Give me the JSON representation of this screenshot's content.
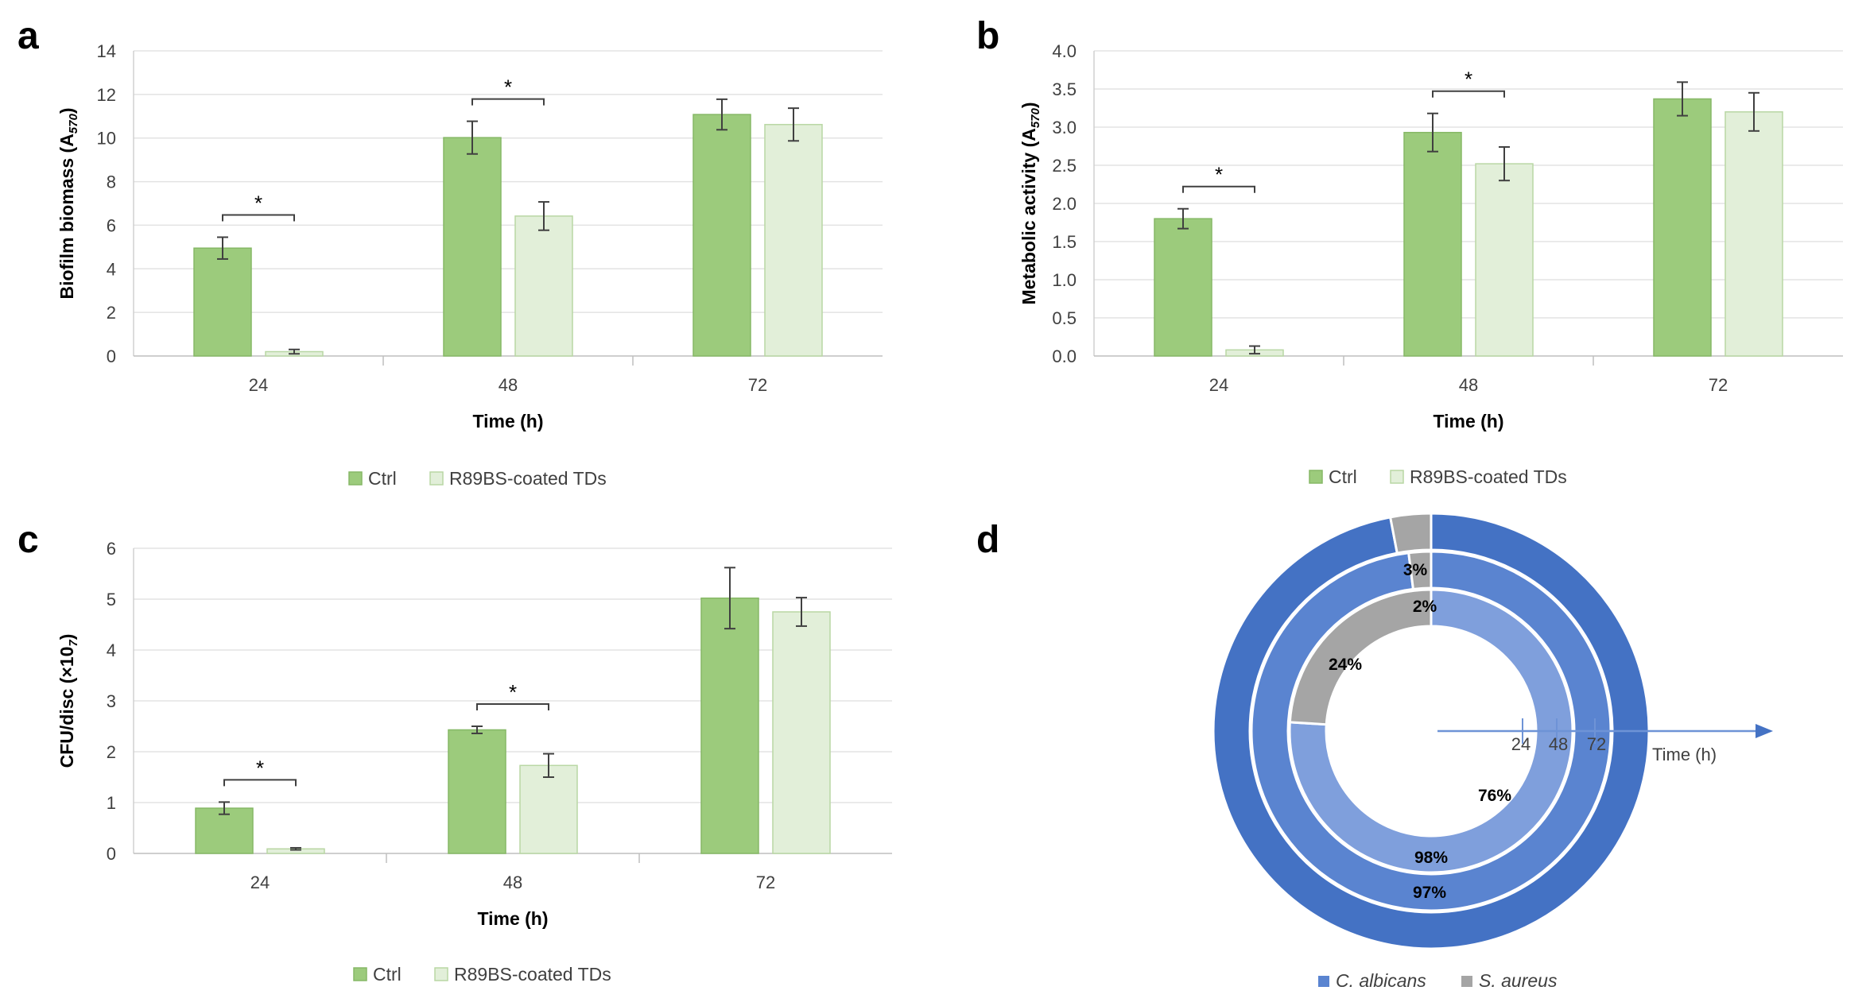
{
  "chart_data": [
    {
      "panel": "a",
      "type": "bar",
      "xlabel": "Time (h)",
      "ylabel": "Biofilm biomass (A",
      "ylabel_sub": "570",
      "ylabel_end": ")",
      "ylim": [
        0,
        14
      ],
      "yticks": [
        "0",
        "2",
        "4",
        "6",
        "8",
        "10",
        "12",
        "14"
      ],
      "categories": [
        "24",
        "48",
        "72"
      ],
      "grid": true,
      "legend_position": "bottom",
      "series": [
        {
          "name": "Ctrl",
          "color": "#9ccb7c",
          "edge": "#86b866",
          "values": [
            4.95,
            10.02,
            11.08
          ],
          "errors": [
            0.5,
            0.75,
            0.7
          ]
        },
        {
          "name": "R89BS-coated TDs",
          "color": "#e2efd9",
          "edge": "#b9d7a4",
          "values": [
            0.2,
            6.42,
            10.62
          ],
          "errors": [
            0.1,
            0.65,
            0.75
          ]
        }
      ],
      "significance": [
        {
          "category": 0,
          "label": "*"
        },
        {
          "category": 1,
          "label": "*"
        }
      ]
    },
    {
      "panel": "b",
      "type": "bar",
      "xlabel": "Time (h)",
      "ylabel": "Metabolic activity (A",
      "ylabel_sub": "570",
      "ylabel_end": ")",
      "ylim": [
        0,
        4
      ],
      "yticks": [
        "0.0",
        "0.5",
        "1.0",
        "1.5",
        "2.0",
        "2.5",
        "3.0",
        "3.5",
        "4.0"
      ],
      "categories": [
        "24",
        "48",
        "72"
      ],
      "grid": true,
      "legend_position": "bottom",
      "series": [
        {
          "name": "Ctrl",
          "color": "#9ccb7c",
          "edge": "#86b866",
          "values": [
            1.8,
            2.93,
            3.37
          ],
          "errors": [
            0.13,
            0.25,
            0.22
          ]
        },
        {
          "name": "R89BS-coated TDs",
          "color": "#e2efd9",
          "edge": "#b9d7a4",
          "values": [
            0.08,
            2.52,
            3.2
          ],
          "errors": [
            0.05,
            0.22,
            0.25
          ]
        }
      ],
      "significance": [
        {
          "category": 0,
          "label": "*"
        },
        {
          "category": 1,
          "label": "*"
        }
      ]
    },
    {
      "panel": "c",
      "type": "bar",
      "xlabel": "Time (h)",
      "ylabel": "CFU/disc (×10",
      "ylabel_sub": "7",
      "ylabel_end": ")",
      "ylim": [
        0,
        6
      ],
      "yticks": [
        "0",
        "1",
        "2",
        "3",
        "4",
        "5",
        "6"
      ],
      "categories": [
        "24",
        "48",
        "72"
      ],
      "grid": true,
      "legend_position": "bottom",
      "series": [
        {
          "name": "Ctrl",
          "color": "#9ccb7c",
          "edge": "#86b866",
          "values": [
            0.89,
            2.43,
            5.02
          ],
          "errors": [
            0.12,
            0.07,
            0.6
          ]
        },
        {
          "name": "R89BS-coated TDs",
          "color": "#e2efd9",
          "edge": "#b9d7a4",
          "values": [
            0.09,
            1.73,
            4.75
          ],
          "errors": [
            0.02,
            0.23,
            0.28
          ]
        }
      ],
      "significance": [
        {
          "category": 0,
          "label": "*"
        },
        {
          "category": 1,
          "label": "*"
        }
      ]
    },
    {
      "panel": "d",
      "type": "pie",
      "subtype": "multi-ring donut",
      "axis_label": "Time (h)",
      "rings": [
        {
          "time": "24",
          "color": "#7f9fdc",
          "slices": [
            {
              "name": "C. albicans",
              "value": 76,
              "label": "76%"
            },
            {
              "name": "S. aureus",
              "value": 24,
              "label": "24%"
            }
          ]
        },
        {
          "time": "48",
          "color": "#5a84d0",
          "slices": [
            {
              "name": "C. albicans",
              "value": 98,
              "label": "98%"
            },
            {
              "name": "S. aureus",
              "value": 2,
              "label": "2%"
            }
          ]
        },
        {
          "time": "72",
          "color": "#4472c4",
          "slices": [
            {
              "name": "C. albicans",
              "value": 97,
              "label": "97%"
            },
            {
              "name": "S. aureus",
              "value": 3,
              "label": "3%"
            }
          ]
        }
      ],
      "legend_position": "bottom",
      "legend": [
        {
          "name": "C. albicans",
          "color": "#5a84d0"
        },
        {
          "name": "S. aureus",
          "color": "#a5a5a5"
        }
      ],
      "sa_color": "#a5a5a5"
    }
  ],
  "labels": {
    "a": "a",
    "b": "b",
    "c": "c",
    "d": "d"
  }
}
